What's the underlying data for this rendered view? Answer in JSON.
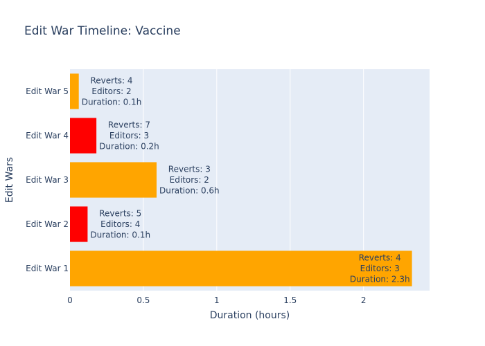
{
  "chart_data": {
    "type": "bar",
    "orientation": "horizontal",
    "title": "Edit War Timeline: Vaccine",
    "xlabel": "Duration (hours)",
    "ylabel": "Edit Wars",
    "xlim": [
      0,
      2.45
    ],
    "xticks": [
      0,
      0.5,
      1,
      1.5,
      2
    ],
    "xtick_labels": [
      "0",
      "0.5",
      "1",
      "1.5",
      "2"
    ],
    "grid": true,
    "categories": [
      "Edit War 1",
      "Edit War 2",
      "Edit War 3",
      "Edit War 4",
      "Edit War 5"
    ],
    "values": [
      2.33,
      0.12,
      0.59,
      0.18,
      0.06
    ],
    "colors": [
      "#FFA500",
      "#FF0000",
      "#FFA500",
      "#FF0000",
      "#FFA500"
    ],
    "labels": [
      [
        "Reverts: 4",
        "Editors: 3",
        "Duration: 2.3h"
      ],
      [
        "Reverts: 5",
        "Editors: 4",
        "Duration: 0.1h"
      ],
      [
        "Reverts: 3",
        "Editors: 2",
        "Duration: 0.6h"
      ],
      [
        "Reverts: 7",
        "Editors: 3",
        "Duration: 0.2h"
      ],
      [
        "Reverts: 4",
        "Editors: 2",
        "Duration: 0.1h"
      ]
    ],
    "plot_bg": "#E5ECF6",
    "text_color": "#2a3f5f"
  }
}
